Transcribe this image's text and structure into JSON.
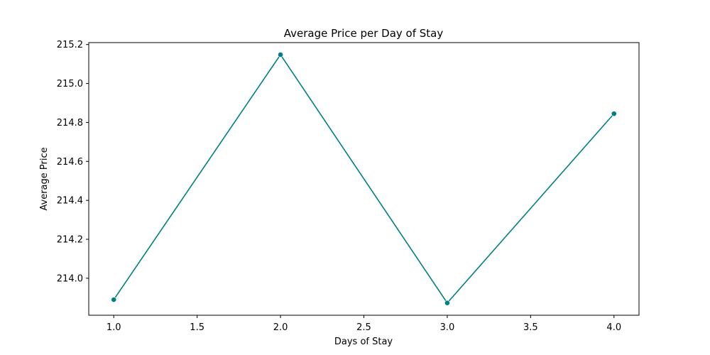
{
  "chart_data": {
    "type": "line",
    "title": "Average Price per Day of Stay",
    "xlabel": "Days of Stay",
    "ylabel": "Average Price",
    "x": [
      1.0,
      2.0,
      3.0,
      4.0
    ],
    "series": [
      {
        "values": [
          213.89,
          215.148,
          213.873,
          214.845
        ],
        "color": "#008080",
        "marker": "circle"
      }
    ],
    "xlim": [
      0.85,
      4.15
    ],
    "ylim": [
      213.81,
      215.21
    ],
    "xticks": [
      1.0,
      1.5,
      2.0,
      2.5,
      3.0,
      3.5,
      4.0
    ],
    "xtick_labels": [
      "1.0",
      "1.5",
      "2.0",
      "2.5",
      "3.0",
      "3.5",
      "4.0"
    ],
    "yticks": [
      214.0,
      214.2,
      214.4,
      214.6,
      214.8,
      215.0,
      215.2
    ],
    "ytick_labels": [
      "214.0",
      "214.2",
      "214.4",
      "214.6",
      "214.8",
      "215.0",
      "215.2"
    ],
    "grid": false,
    "legend": "none"
  }
}
